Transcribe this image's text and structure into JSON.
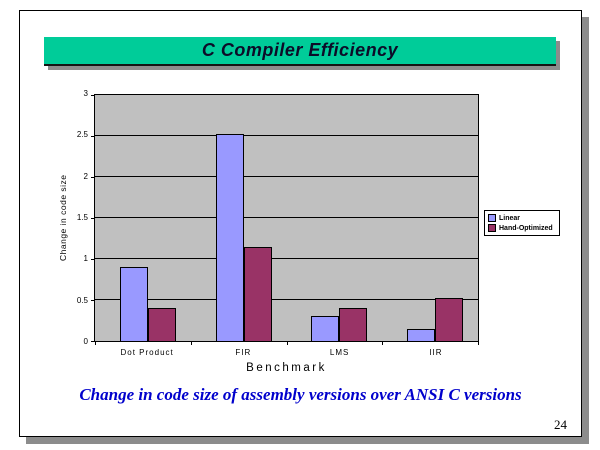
{
  "slide": {
    "title": "C Compiler Efficiency",
    "caption": "Change in code size of assembly versions over ANSI C versions",
    "page_number": "24"
  },
  "colors": {
    "title_bar_bg": "#00CC99",
    "title_text": "#0C0C28",
    "caption_text": "#0000CC",
    "plot_bg": "#C0C0C0",
    "gridline": "#000000",
    "bar_linear": "#9999FF",
    "bar_hand_optimized": "#993366",
    "slide_shadow": "#8C8C8C"
  },
  "chart_data": {
    "type": "bar",
    "title": "",
    "categories": [
      "Dot Product",
      "FIR",
      "LMS",
      "IIR"
    ],
    "series": [
      {
        "name": "Linear",
        "color": "#9999FF",
        "values": [
          0.9,
          2.52,
          0.3,
          0.15
        ]
      },
      {
        "name": "Hand-Optimized",
        "color": "#993366",
        "values": [
          0.4,
          1.15,
          0.4,
          0.52
        ]
      }
    ],
    "xlabel": "Benchmark",
    "ylabel": "Change in code size",
    "ylim": [
      0,
      3
    ],
    "ytick_step": 0.5,
    "ytick_labels": [
      "0",
      "0.5",
      "1",
      "1.5",
      "2",
      "2.5",
      "3"
    ],
    "grid": true,
    "legend_position": "right",
    "plot_background": "#C0C0C0"
  }
}
